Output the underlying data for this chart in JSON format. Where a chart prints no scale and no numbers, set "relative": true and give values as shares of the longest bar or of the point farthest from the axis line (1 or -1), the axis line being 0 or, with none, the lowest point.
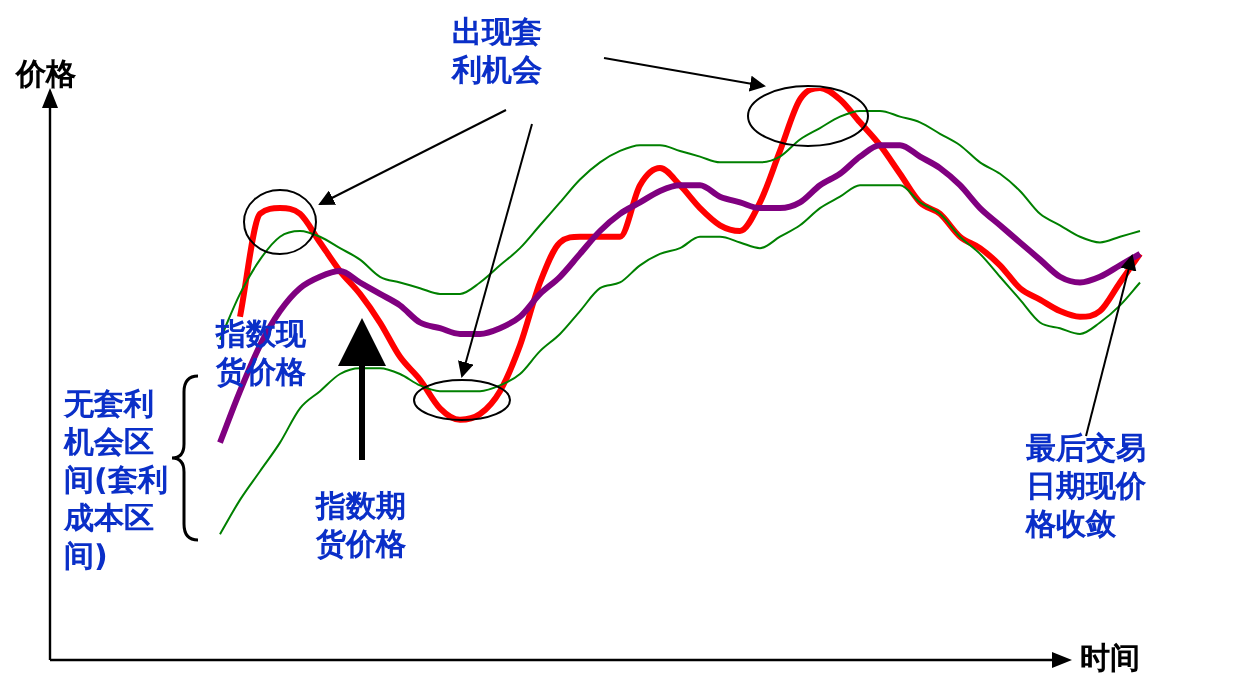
{
  "chart_data": {
    "type": "line",
    "relative": true,
    "xlabel": "时间",
    "ylabel": "价格",
    "legend": false,
    "grid": false,
    "marker": "none",
    "line_style": "solid",
    "annotations": [
      "出现套利机会",
      "无套利机会区间(套利成本区间)",
      "最后交易日期现价格收敛"
    ],
    "categories": [
      null,
      null,
      null,
      null,
      null,
      null,
      null,
      null,
      null,
      null,
      null,
      null,
      null,
      null,
      null,
      null,
      null,
      null,
      null,
      null,
      null,
      null,
      null,
      null,
      null,
      null,
      null,
      null,
      null,
      null,
      null,
      null,
      null,
      null,
      null,
      null,
      null,
      null,
      null,
      null,
      null,
      null,
      null,
      null,
      null,
      null,
      null
    ],
    "series": [
      {
        "color": "#008000",
        "values": [
          0.56,
          0.64,
          0.7,
          0.74,
          0.75,
          0.74,
          0.72,
          0.7,
          0.67,
          0.66,
          0.65,
          0.64,
          0.64,
          0.66,
          0.69,
          0.72,
          0.76,
          0.8,
          0.84,
          0.87,
          0.89,
          0.9,
          0.9,
          0.89,
          0.88,
          0.87,
          0.87,
          0.87,
          0.88,
          0.91,
          0.93,
          0.95,
          0.96,
          0.96,
          0.95,
          0.94,
          0.92,
          0.9,
          0.87,
          0.85,
          0.82,
          0.78,
          0.76,
          0.74,
          0.73,
          0.74,
          0.75
        ]
      },
      {
        "color": "#008000",
        "values": [
          0.22,
          0.28,
          0.33,
          0.38,
          0.44,
          0.47,
          0.5,
          0.51,
          0.51,
          0.5,
          0.48,
          0.47,
          0.47,
          0.47,
          0.48,
          0.5,
          0.54,
          0.57,
          0.61,
          0.65,
          0.66,
          0.69,
          0.71,
          0.72,
          0.74,
          0.74,
          0.73,
          0.72,
          0.74,
          0.76,
          0.79,
          0.81,
          0.83,
          0.83,
          0.83,
          0.8,
          0.78,
          0.74,
          0.71,
          0.67,
          0.63,
          0.59,
          0.58,
          0.57,
          0.59,
          0.62,
          0.66
        ]
      },
      {
        "name": "指数现货价格",
        "color": "#800080",
        "values": [
          0.38,
          0.47,
          0.55,
          0.61,
          0.65,
          0.67,
          0.68,
          0.66,
          0.64,
          0.62,
          0.59,
          0.58,
          0.57,
          0.57,
          0.58,
          0.6,
          0.64,
          0.67,
          0.71,
          0.75,
          0.78,
          0.8,
          0.82,
          0.83,
          0.83,
          0.81,
          0.8,
          0.79,
          0.79,
          0.8,
          0.83,
          0.85,
          0.88,
          0.9,
          0.9,
          0.88,
          0.86,
          0.83,
          0.79,
          0.76,
          0.73,
          0.7,
          0.67,
          0.66,
          0.67,
          0.69,
          0.71
        ]
      },
      {
        "name": "指数期货价格",
        "color": "#ff0000",
        "values": [
          null,
          0.6,
          0.78,
          0.79,
          0.78,
          0.73,
          0.68,
          0.64,
          0.59,
          0.53,
          0.49,
          0.44,
          0.42,
          0.43,
          0.47,
          0.55,
          0.66,
          0.73,
          0.74,
          0.74,
          0.74,
          0.83,
          0.86,
          0.83,
          0.79,
          0.76,
          0.75,
          0.8,
          0.89,
          0.98,
          1,
          0.98,
          0.94,
          0.9,
          0.85,
          0.8,
          0.78,
          0.74,
          0.72,
          0.69,
          0.65,
          0.63,
          0.61,
          0.6,
          0.61,
          0.66,
          0.71
        ]
      }
    ]
  }
}
